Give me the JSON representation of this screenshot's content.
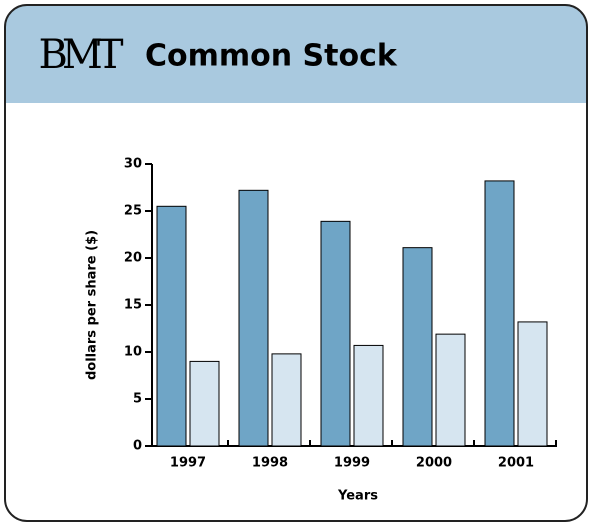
{
  "logo": "BMT",
  "chart_data": {
    "type": "bar",
    "title": "Common Stock",
    "categories": [
      "1997",
      "1998",
      "1999",
      "2000",
      "2001"
    ],
    "series": [
      {
        "color": "#6fa5c6",
        "values": [
          25.5,
          27.2,
          23.9,
          21.1,
          28.2
        ]
      },
      {
        "color": "#d6e5f0",
        "values": [
          9.0,
          9.8,
          10.7,
          11.9,
          13.2
        ]
      }
    ],
    "ylabel": "dollars per share ($)",
    "xlabel": "Years",
    "ylim": [
      0,
      30
    ],
    "yticks": [
      0,
      5,
      10,
      15,
      20,
      25,
      30
    ],
    "grid": false
  }
}
